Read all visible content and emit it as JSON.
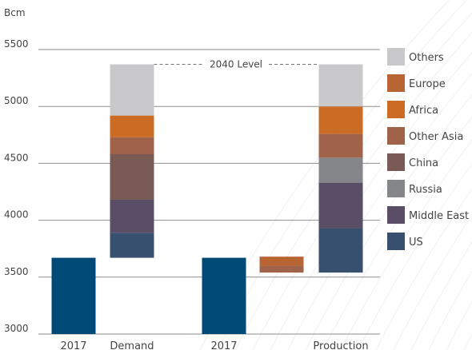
{
  "chart_data": {
    "type": "bar",
    "title": "",
    "ylabel": "Bcm",
    "xlabel": "",
    "ylim": [
      3000,
      5500
    ],
    "yticks": [
      3000,
      3500,
      4000,
      4500,
      5000,
      5500
    ],
    "grid": true,
    "legend_position": "right",
    "categories": [
      "2017",
      "Demand",
      "2017",
      "",
      "Production"
    ],
    "series_order": [
      "US",
      "Middle East",
      "Russia",
      "China",
      "Other Asia",
      "Africa",
      "Europe",
      "Others"
    ],
    "legend_order": [
      "Others",
      "Europe",
      "Africa",
      "Other Asia",
      "China",
      "Russia",
      "Middle East",
      "US"
    ],
    "series_colors": {
      "US": "#37506f",
      "Middle East": "#5a4e66",
      "Russia": "#85868a",
      "China": "#7a5a55",
      "Other Asia": "#a0634a",
      "Africa": "#cc6b24",
      "Europe": "#b96533",
      "Others": "#c9c9cb"
    },
    "base_color": "#004a78",
    "bars": [
      {
        "category_index": 0,
        "kind": "total",
        "value": 3670
      },
      {
        "category_index": 1,
        "kind": "stack",
        "start": 3670,
        "segments": [
          {
            "series": "US",
            "value": 220
          },
          {
            "series": "Middle East",
            "value": 290
          },
          {
            "series": "China",
            "value": 400
          },
          {
            "series": "Other Asia",
            "value": 150
          },
          {
            "series": "Africa",
            "value": 190
          },
          {
            "series": "Others",
            "value": 450
          }
        ]
      },
      {
        "category_index": 2,
        "kind": "total",
        "value": 3670
      },
      {
        "category_index": 3,
        "kind": "decline",
        "start": 3680,
        "segments": [
          {
            "series": "Europe",
            "value": -80
          },
          {
            "series": "Other Asia",
            "value": -60
          }
        ]
      },
      {
        "category_index": 4,
        "kind": "stack",
        "start": 3540,
        "segments": [
          {
            "series": "US",
            "value": 390
          },
          {
            "series": "Middle East",
            "value": 400
          },
          {
            "series": "Russia",
            "value": 220
          },
          {
            "series": "Other Asia",
            "value": 210
          },
          {
            "series": "Africa",
            "value": 240
          },
          {
            "series": "Others",
            "value": 370
          }
        ]
      }
    ],
    "annotation": {
      "text": "2040 Level",
      "value": 5370
    }
  }
}
